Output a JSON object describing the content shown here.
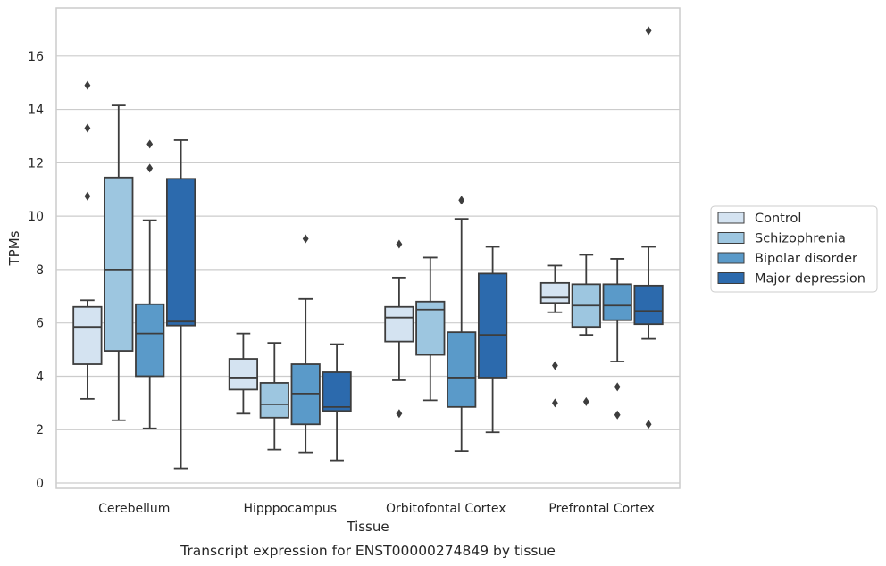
{
  "chart_data": {
    "type": "box",
    "xlabel": "Tissue",
    "ylabel": "TPMs",
    "caption": "Transcript expression for ENST00000274849 by tissue",
    "ylim": [
      -0.2,
      17.8
    ],
    "yticks": [
      0,
      2,
      4,
      6,
      8,
      10,
      12,
      14,
      16
    ],
    "grid": "horizontal",
    "legend_position": "right",
    "categories": [
      "Cerebellum",
      "Hipppocampus",
      "Orbitofontal Cortex",
      "Prefrontal Cortex"
    ],
    "series": [
      {
        "name": "Control",
        "color": "#d4e3f1",
        "boxes": [
          {
            "whisker_low": 3.15,
            "q1": 4.45,
            "median": 5.85,
            "q3": 6.6,
            "whisker_high": 6.85,
            "outliers": [
              10.75,
              13.3,
              14.9
            ]
          },
          {
            "whisker_low": 2.6,
            "q1": 3.5,
            "median": 3.95,
            "q3": 4.65,
            "whisker_high": 5.6,
            "outliers": []
          },
          {
            "whisker_low": 3.85,
            "q1": 5.3,
            "median": 6.2,
            "q3": 6.6,
            "whisker_high": 7.7,
            "outliers": [
              2.6,
              8.95
            ]
          },
          {
            "whisker_low": 6.4,
            "q1": 6.75,
            "median": 6.95,
            "q3": 7.5,
            "whisker_high": 8.15,
            "outliers": [
              3.0,
              4.4
            ]
          }
        ]
      },
      {
        "name": "Schizophrenia",
        "color": "#9dc6e0",
        "boxes": [
          {
            "whisker_low": 2.35,
            "q1": 4.95,
            "median": 8.0,
            "q3": 11.45,
            "whisker_high": 14.15,
            "outliers": []
          },
          {
            "whisker_low": 1.25,
            "q1": 2.45,
            "median": 2.95,
            "q3": 3.75,
            "whisker_high": 5.25,
            "outliers": []
          },
          {
            "whisker_low": 3.1,
            "q1": 4.8,
            "median": 6.5,
            "q3": 6.8,
            "whisker_high": 8.45,
            "outliers": []
          },
          {
            "whisker_low": 5.55,
            "q1": 5.85,
            "median": 6.65,
            "q3": 7.45,
            "whisker_high": 8.55,
            "outliers": [
              3.05
            ]
          }
        ]
      },
      {
        "name": "Bipolar disorder",
        "color": "#5a9ac9",
        "boxes": [
          {
            "whisker_low": 2.05,
            "q1": 4.0,
            "median": 5.6,
            "q3": 6.7,
            "whisker_high": 9.85,
            "outliers": [
              11.8,
              12.7
            ]
          },
          {
            "whisker_low": 1.15,
            "q1": 2.2,
            "median": 3.35,
            "q3": 4.45,
            "whisker_high": 6.9,
            "outliers": [
              9.15
            ]
          },
          {
            "whisker_low": 1.2,
            "q1": 2.85,
            "median": 3.95,
            "q3": 5.65,
            "whisker_high": 9.9,
            "outliers": [
              10.6
            ]
          },
          {
            "whisker_low": 4.55,
            "q1": 6.1,
            "median": 6.65,
            "q3": 7.45,
            "whisker_high": 8.4,
            "outliers": [
              2.55,
              3.6
            ]
          }
        ]
      },
      {
        "name": "Major depression",
        "color": "#2c6aad",
        "boxes": [
          {
            "whisker_low": 0.55,
            "q1": 5.9,
            "median": 6.05,
            "q3": 11.4,
            "whisker_high": 12.85,
            "outliers": []
          },
          {
            "whisker_low": 0.85,
            "q1": 2.7,
            "median": 2.85,
            "q3": 4.15,
            "whisker_high": 5.2,
            "outliers": []
          },
          {
            "whisker_low": 1.9,
            "q1": 3.95,
            "median": 5.55,
            "q3": 7.85,
            "whisker_high": 8.85,
            "outliers": []
          },
          {
            "whisker_low": 5.4,
            "q1": 5.95,
            "median": 6.45,
            "q3": 7.4,
            "whisker_high": 8.85,
            "outliers": [
              2.2,
              16.95
            ]
          }
        ]
      }
    ]
  }
}
